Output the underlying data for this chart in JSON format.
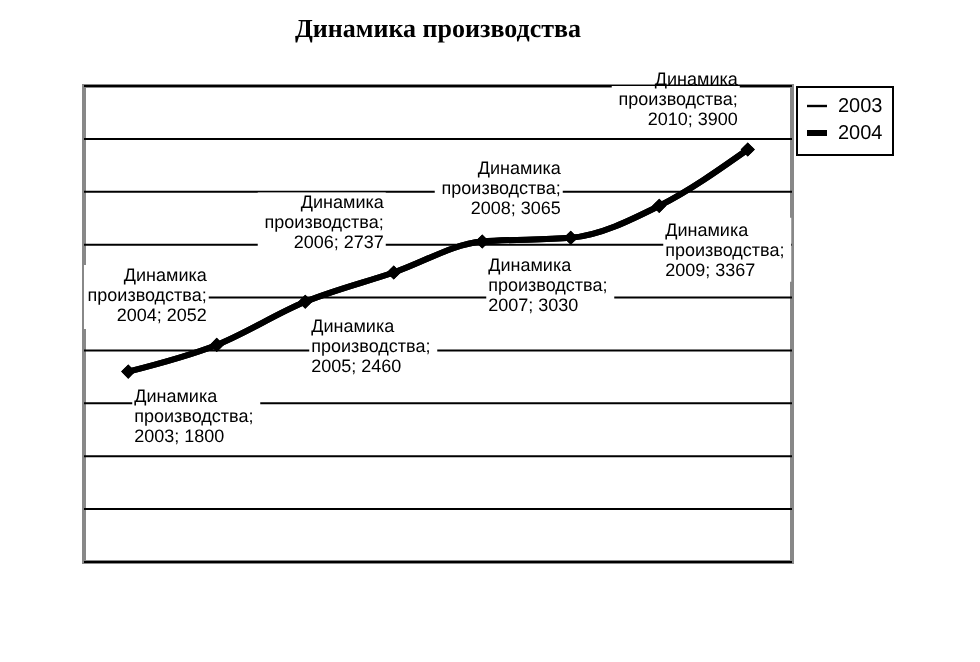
{
  "chart_data": {
    "type": "line",
    "title": "Динамика производства",
    "categories": [
      null,
      null,
      null,
      null,
      null,
      null,
      null,
      null
    ],
    "series": [
      {
        "name": "2003",
        "color": "#000000",
        "values": [
          null,
          null,
          null,
          null,
          null,
          null,
          null,
          null
        ]
      },
      {
        "name": "2004",
        "color": "#000000",
        "values": [
          1800,
          2052,
          2460,
          2737,
          3030,
          3065,
          3367,
          3900
        ],
        "value_labels": [
          "Динамика производства; 2003; 1800",
          "Динамика производства; 2004; 2052",
          "Динамика производства; 2005; 2460",
          "Динамика производства; 2006; 2737",
          "Динамика производства; 2007; 3030",
          "Динамика производства; 2008; 3065",
          "Динамика производства; 2009; 3367",
          "Динамика производства; 2010; 3900"
        ]
      }
    ],
    "ylim": [
      0,
      4500
    ],
    "yticks": [
      {
        "value": 0,
        "label": null
      },
      {
        "value": 500,
        "label": null
      },
      {
        "value": 1000,
        "label": null
      },
      {
        "value": 1500,
        "label": null
      },
      {
        "value": 2000,
        "label": null
      },
      {
        "value": 2500,
        "label": null
      },
      {
        "value": 3000,
        "label": null
      },
      {
        "value": 3500,
        "label": null
      },
      {
        "value": 4000,
        "label": null
      },
      {
        "value": 4500,
        "label": null
      }
    ],
    "grid": "y",
    "legend": "right",
    "marker": "diamond",
    "line_style": "solid"
  }
}
